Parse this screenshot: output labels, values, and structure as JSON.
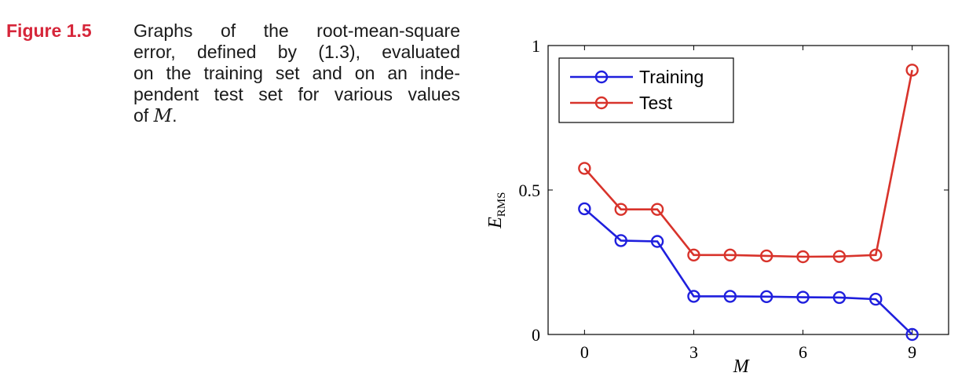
{
  "caption": {
    "label": "Figure 1.5",
    "lines": [
      "Graphs of the root-mean-square",
      "error, defined by (1.3), evaluated",
      "on the training set and on an inde-",
      "pendent test set for various values"
    ],
    "last_prefix": "of ",
    "last_math": "M",
    "last_suffix": "."
  },
  "chart_data": {
    "type": "line",
    "xlabel": "M",
    "ylabel_main": "E",
    "ylabel_sub": "RMS",
    "xlim": [
      -1,
      10
    ],
    "ylim": [
      0,
      1
    ],
    "xticks": [
      0,
      3,
      6,
      9
    ],
    "yticks": [
      0,
      0.5,
      1
    ],
    "ytick_labels": [
      "0",
      "0.5",
      "1"
    ],
    "legend_position": "top-left",
    "grid": false,
    "series": [
      {
        "name": "Training",
        "color": "#1f1fdd",
        "x": [
          0,
          1,
          2,
          3,
          4,
          5,
          6,
          7,
          8,
          9
        ],
        "y": [
          0.435,
          0.325,
          0.322,
          0.132,
          0.132,
          0.131,
          0.129,
          0.128,
          0.122,
          0.0
        ]
      },
      {
        "name": "Test",
        "color": "#d8332b",
        "x": [
          0,
          1,
          2,
          3,
          4,
          5,
          6,
          7,
          8,
          9
        ],
        "y": [
          0.575,
          0.433,
          0.433,
          0.275,
          0.275,
          0.272,
          0.269,
          0.27,
          0.275,
          0.915
        ]
      }
    ]
  }
}
